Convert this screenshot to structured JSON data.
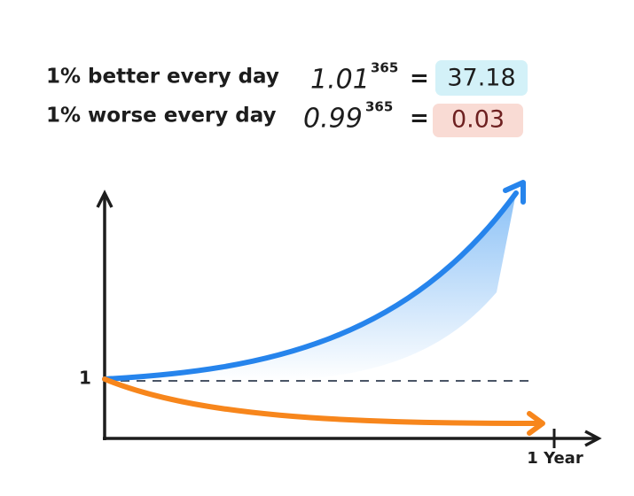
{
  "rows": [
    {
      "label": "1% better every day",
      "base": "1.01",
      "exponent": "365",
      "equals": "=",
      "result": "37.18"
    },
    {
      "label": "1% worse every day",
      "base": "0.99",
      "exponent": "365",
      "equals": "=",
      "result": "0.03"
    }
  ],
  "axis": {
    "y_label": "1",
    "x_label": "1 Year"
  }
}
